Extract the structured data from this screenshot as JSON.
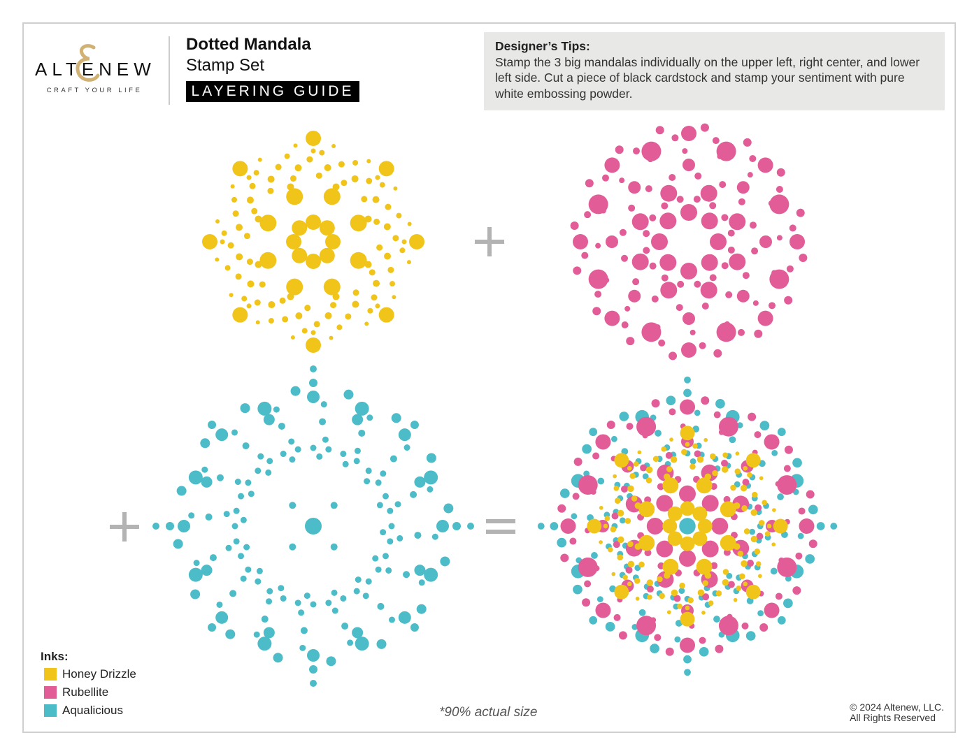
{
  "brand": {
    "name": "ALTENEW",
    "tagline": "CRAFT YOUR LIFE"
  },
  "header": {
    "title": "Dotted Mandala",
    "subtitle": "Stamp Set",
    "badge": "LAYERING GUIDE"
  },
  "tips": {
    "heading": "Designer’s Tips:",
    "body": "Stamp the 3 big mandalas individually on the upper left, right center, and lower left side. Cut a piece of black cardstock and stamp your sentiment with pure white embossing powder."
  },
  "operators": {
    "plus": "+",
    "equals": "="
  },
  "inks": {
    "heading": "Inks:",
    "items": [
      {
        "name": "Honey Drizzle",
        "color": "#f0c419"
      },
      {
        "name": "Rubellite",
        "color": "#e25c97"
      },
      {
        "name": "Aqualicious",
        "color": "#4bbcc8"
      }
    ]
  },
  "footer": {
    "note": "*90% actual size",
    "copyright": "© 2024 Altenew, LLC.",
    "rights": "All Rights Reserved"
  },
  "operator_color": "#b3b3b3"
}
